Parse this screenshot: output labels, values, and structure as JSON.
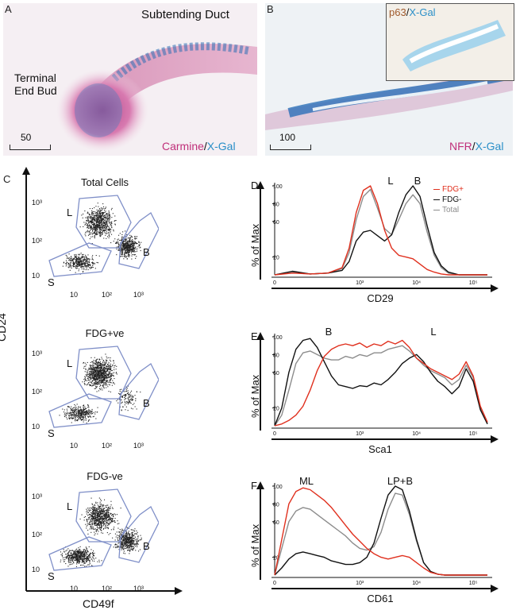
{
  "panels": {
    "A": {
      "letter": "A",
      "title": "Subtending Duct",
      "tissue_line1": "Terminal",
      "tissue_line2": "End Bud",
      "scale": "50",
      "stain1": "Carmine",
      "sep": "/",
      "stain2": "X-Gal"
    },
    "B": {
      "letter": "B",
      "scale": "100",
      "stain1": "NFR",
      "sep": "/",
      "stain2": "X-Gal",
      "inset_stain1": "p63",
      "inset_sep": "/",
      "inset_stain2": "X-Gal"
    },
    "C": {
      "letter": "C",
      "ylabel": "CD24",
      "xlabel": "CD49f",
      "plots": [
        {
          "title": "Total Cells",
          "gates": [
            "L",
            "B",
            "S"
          ]
        },
        {
          "title": "FDG+ve",
          "gates": [
            "L",
            "B",
            "S"
          ]
        },
        {
          "title": "FDG-ve",
          "gates": [
            "L",
            "B",
            "S"
          ]
        }
      ],
      "xticks": [
        "10",
        "10²",
        "10³"
      ],
      "yticks": [
        "10",
        "10²",
        "10³"
      ]
    },
    "D": {
      "letter": "D",
      "xlabel": "CD29",
      "peaks": [
        "L",
        "B"
      ]
    },
    "E": {
      "letter": "E",
      "xlabel": "Sca1",
      "peaks": [
        "B",
        "L"
      ]
    },
    "F": {
      "letter": "F",
      "xlabel": "CD61",
      "peaks": [
        "ML",
        "LP+B"
      ]
    }
  },
  "histogram_axis": {
    "ylabel": "% of Max",
    "yticks": [
      "20",
      "60",
      "80",
      "100"
    ],
    "xticks_D": [
      "0",
      "10³",
      "10⁴",
      "10⁵"
    ],
    "xticks_E": [
      "0",
      "10³",
      "10⁴",
      "10⁵"
    ],
    "xticks_F": [
      "0",
      "10³",
      "10⁴",
      "10⁵"
    ]
  },
  "legend": [
    {
      "label": "FDG+",
      "color": "#e0301e"
    },
    {
      "label": "FDG-",
      "color": "#111111"
    },
    {
      "label": "Total",
      "color": "#8c8c8c"
    }
  ],
  "colors": {
    "carmine": "#c0307a",
    "xgal": "#2a8fc8",
    "p63": "#a05a2c",
    "gate": "#7f8fc8"
  },
  "chart_data": [
    {
      "type": "line",
      "panel": "D",
      "xlabel": "CD29",
      "ylabel": "% of Max",
      "x": [
        0,
        50,
        100,
        150,
        190,
        210,
        230,
        250,
        270,
        290,
        310,
        330,
        350,
        370,
        390,
        410,
        430,
        450,
        470,
        490,
        520,
        560,
        600
      ],
      "series": [
        {
          "name": "FDG+",
          "color": "#e0301e",
          "values": [
            0,
            2,
            1,
            2,
            8,
            30,
            70,
            95,
            100,
            80,
            50,
            30,
            22,
            20,
            18,
            12,
            6,
            3,
            1,
            0,
            0,
            0,
            0
          ]
        },
        {
          "name": "FDG-",
          "color": "#111111",
          "values": [
            0,
            4,
            1,
            2,
            5,
            15,
            38,
            48,
            50,
            44,
            38,
            45,
            70,
            90,
            100,
            88,
            55,
            25,
            10,
            3,
            0,
            0,
            0
          ]
        },
        {
          "name": "Total",
          "color": "#8c8c8c",
          "values": [
            0,
            3,
            1,
            2,
            7,
            25,
            62,
            88,
            96,
            75,
            52,
            45,
            62,
            80,
            90,
            80,
            48,
            22,
            8,
            2,
            0,
            0,
            0
          ]
        }
      ]
    },
    {
      "type": "line",
      "panel": "E",
      "xlabel": "Sca1",
      "ylabel": "% of Max",
      "x": [
        0,
        20,
        40,
        60,
        80,
        100,
        120,
        140,
        160,
        180,
        200,
        220,
        240,
        260,
        280,
        300,
        320,
        340,
        360,
        380,
        400,
        420,
        440,
        460,
        480,
        500,
        520,
        540,
        560,
        580,
        600
      ],
      "series": [
        {
          "name": "FDG+",
          "color": "#e0301e",
          "values": [
            0,
            2,
            6,
            12,
            22,
            40,
            62,
            78,
            86,
            90,
            92,
            90,
            93,
            88,
            92,
            90,
            95,
            92,
            96,
            88,
            76,
            70,
            64,
            60,
            56,
            52,
            58,
            72,
            56,
            22,
            4
          ]
        },
        {
          "name": "FDG-",
          "color": "#111111",
          "values": [
            0,
            20,
            60,
            86,
            96,
            98,
            88,
            72,
            56,
            46,
            44,
            42,
            45,
            44,
            48,
            46,
            52,
            60,
            70,
            76,
            80,
            72,
            60,
            50,
            44,
            36,
            44,
            64,
            50,
            18,
            2
          ]
        },
        {
          "name": "Total",
          "color": "#8c8c8c",
          "values": [
            0,
            12,
            40,
            70,
            82,
            84,
            80,
            76,
            74,
            74,
            78,
            76,
            80,
            78,
            82,
            82,
            86,
            88,
            90,
            84,
            76,
            68,
            62,
            58,
            54,
            46,
            52,
            68,
            54,
            20,
            3
          ]
        }
      ]
    },
    {
      "type": "line",
      "panel": "F",
      "xlabel": "CD61",
      "ylabel": "% of Max",
      "x": [
        0,
        20,
        40,
        60,
        80,
        100,
        120,
        140,
        160,
        180,
        200,
        220,
        240,
        260,
        280,
        300,
        320,
        340,
        360,
        380,
        400,
        420,
        440,
        460,
        480,
        500,
        520,
        540,
        560,
        580,
        600
      ],
      "series": [
        {
          "name": "FDG+",
          "color": "#e0301e",
          "values": [
            0,
            40,
            80,
            94,
            98,
            96,
            90,
            84,
            76,
            66,
            56,
            46,
            38,
            30,
            24,
            20,
            18,
            20,
            22,
            20,
            14,
            8,
            3,
            1,
            0,
            0,
            0,
            0,
            0,
            0,
            0
          ]
        },
        {
          "name": "FDG-",
          "color": "#111111",
          "values": [
            0,
            8,
            18,
            24,
            26,
            24,
            22,
            20,
            16,
            14,
            12,
            12,
            14,
            20,
            36,
            64,
            90,
            100,
            96,
            72,
            40,
            14,
            4,
            1,
            0,
            0,
            0,
            0,
            0,
            0,
            0
          ]
        },
        {
          "name": "Total",
          "color": "#8c8c8c",
          "values": [
            0,
            30,
            60,
            72,
            76,
            74,
            68,
            62,
            56,
            50,
            44,
            36,
            30,
            28,
            32,
            48,
            74,
            92,
            90,
            68,
            38,
            14,
            4,
            1,
            0,
            0,
            0,
            0,
            0,
            0,
            0
          ]
        }
      ]
    }
  ]
}
